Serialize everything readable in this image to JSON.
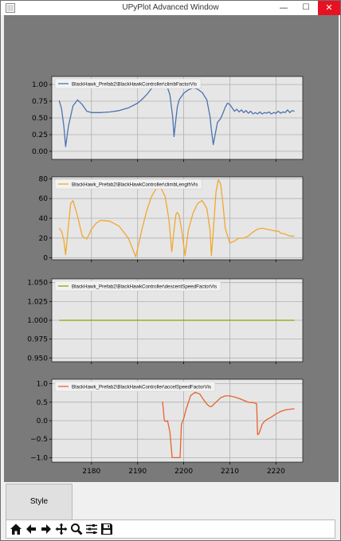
{
  "window": {
    "title": "UPyPlot Advanced Window",
    "minimize_glyph": "—",
    "maximize_glyph": "☐",
    "close_glyph": "✕"
  },
  "colors": {
    "plot_background": "#7a7a7a",
    "axes_face": "#e6e6e6",
    "grid": "#b0b0b0",
    "series_blue": "#4c72b0",
    "series_orange": "#f0a830",
    "series_olive": "#8fa000",
    "series_red": "#e8622f",
    "close_button": "#e81123"
  },
  "tabs": {
    "style_label": "Style"
  },
  "toolbar": {
    "icons": [
      "home-icon",
      "back-arrow-icon",
      "forward-arrow-icon",
      "pan-icon",
      "zoom-icon",
      "configure-subplots-icon",
      "save-icon"
    ]
  },
  "chart_data": [
    {
      "type": "line",
      "series": [
        {
          "name": "BlackHawk_Prefab2\\BlackHawkController\\climbFactorVis",
          "color": "#4c72b0",
          "x": [
            2173,
            2173.5,
            2174,
            2174.4,
            2175,
            2176,
            2177,
            2178,
            2179,
            2180,
            2182,
            2184,
            2186,
            2188,
            2190,
            2191,
            2192,
            2193,
            2194,
            2195,
            2196,
            2197,
            2197.6,
            2197.9,
            2198.2,
            2198.6,
            2199,
            2200,
            2201,
            2202,
            2203,
            2204,
            2205,
            2205.7,
            2206,
            2206.4,
            2206.8,
            2207.3,
            2208,
            2208.5,
            2209,
            2209.5,
            2210,
            2210.5,
            2211,
            2211.5,
            2212,
            2212.5,
            2213,
            2213.5,
            2214,
            2214.5,
            2215,
            2215.5,
            2216,
            2216.5,
            2217,
            2217.5,
            2218,
            2218.5,
            2219,
            2219.5,
            2220,
            2220.5,
            2221,
            2221.5,
            2222,
            2222.5,
            2223,
            2223.5,
            2224
          ],
          "y": [
            0.76,
            0.64,
            0.38,
            0.07,
            0.37,
            0.68,
            0.77,
            0.7,
            0.6,
            0.58,
            0.58,
            0.59,
            0.61,
            0.65,
            0.72,
            0.78,
            0.85,
            0.94,
            1.02,
            1.08,
            1.05,
            0.85,
            0.52,
            0.22,
            0.42,
            0.66,
            0.77,
            0.87,
            0.92,
            0.95,
            0.93,
            0.88,
            0.77,
            0.52,
            0.32,
            0.1,
            0.25,
            0.43,
            0.49,
            0.57,
            0.66,
            0.72,
            0.7,
            0.65,
            0.6,
            0.63,
            0.59,
            0.62,
            0.58,
            0.61,
            0.57,
            0.6,
            0.56,
            0.58,
            0.56,
            0.59,
            0.56,
            0.58,
            0.57,
            0.59,
            0.56,
            0.58,
            0.57,
            0.6,
            0.57,
            0.59,
            0.58,
            0.62,
            0.58,
            0.61,
            0.6
          ]
        }
      ],
      "ylim": [
        -0.12,
        1.12
      ],
      "xlim": [
        2171.4,
        2225.8
      ],
      "yticks": [
        0,
        0.25,
        0.5,
        0.75,
        1
      ],
      "ytick_labels": [
        "0.00",
        "0.25",
        "0.50",
        "0.75",
        "1.00"
      ],
      "xticks": [
        2180,
        2190,
        2200,
        2210,
        2220
      ],
      "xtick_labels": [],
      "grid": true,
      "legend": "top-left"
    },
    {
      "type": "line",
      "series": [
        {
          "name": "BlackHawk_Prefab2\\BlackHawkController\\climbLengthVis",
          "color": "#f0a830",
          "x": [
            2173,
            2173.5,
            2174,
            2174.4,
            2175,
            2175.5,
            2176,
            2177,
            2178,
            2179,
            2180,
            2181,
            2182,
            2184,
            2186,
            2188,
            2189.6,
            2191,
            2192,
            2193,
            2194,
            2195,
            2196,
            2196.8,
            2197.4,
            2198,
            2198.3,
            2198.6,
            2199,
            2199.5,
            2200.3,
            2201,
            2202,
            2203,
            2204,
            2205,
            2205.7,
            2206,
            2206.3,
            2207,
            2207.5,
            2208,
            2208.5,
            2209,
            2210,
            2211,
            2212,
            2213,
            2214,
            2215,
            2216,
            2217,
            2218,
            2219,
            2220,
            2220.6,
            2221,
            2222,
            2223,
            2224
          ],
          "y": [
            30,
            27,
            18,
            3,
            32,
            55,
            58,
            42,
            22,
            19,
            29,
            35,
            38,
            37,
            32,
            20,
            1,
            30,
            48,
            62,
            70,
            71,
            62,
            38,
            6,
            32,
            44,
            46,
            43,
            30,
            2,
            28,
            45,
            55,
            58,
            50,
            28,
            2,
            20,
            67,
            79,
            75,
            55,
            30,
            15,
            17,
            20,
            20,
            22,
            26,
            29,
            30,
            29,
            28,
            27,
            27,
            25,
            24,
            22,
            22
          ]
        }
      ],
      "ylim": [
        -2,
        82
      ],
      "xlim": [
        2171.4,
        2225.8
      ],
      "yticks": [
        0,
        20,
        40,
        60,
        80
      ],
      "ytick_labels": [
        "0",
        "20",
        "40",
        "60",
        "80"
      ],
      "xticks": [
        2180,
        2190,
        2200,
        2210,
        2220
      ],
      "xtick_labels": [],
      "grid": true,
      "legend": "top-left"
    },
    {
      "type": "line",
      "series": [
        {
          "name": "BlackHawk_Prefab2\\BlackHawkController\\descentSpeedFactorVis",
          "color": "#8fa000",
          "x": [
            2173,
            2224
          ],
          "y": [
            1.0,
            1.0
          ]
        }
      ],
      "ylim": [
        0.945,
        1.055
      ],
      "xlim": [
        2171.4,
        2225.8
      ],
      "yticks": [
        0.95,
        0.975,
        1.0,
        1.025,
        1.05
      ],
      "ytick_labels": [
        "0.950",
        "0.975",
        "1.000",
        "1.025",
        "1.050"
      ],
      "xticks": [
        2180,
        2190,
        2200,
        2210,
        2220
      ],
      "xtick_labels": [],
      "grid": true,
      "legend": "top-left"
    },
    {
      "type": "line",
      "series": [
        {
          "name": "BlackHawk_Prefab2\\BlackHawkController\\accelSpeedFactorVis",
          "color": "#e8622f",
          "x": [
            2195.4,
            2195.8,
            2196.1,
            2196.5,
            2197,
            2197.5,
            2198.5,
            2199.2,
            2199.5,
            2200,
            2200.5,
            2201.5,
            2202.5,
            2203.5,
            2204,
            2205,
            2205.5,
            2206,
            2207,
            2208,
            2209,
            2210,
            2211,
            2212,
            2213,
            2214,
            2215,
            2215.8,
            2216,
            2216.3,
            2216.6,
            2217,
            2217.5,
            2218,
            2219,
            2220,
            2221,
            2222,
            2223,
            2224
          ],
          "y": [
            0.52,
            0.0,
            -0.02,
            0.0,
            -0.3,
            -1.0,
            -1.0,
            -1.0,
            -0.1,
            0.06,
            0.3,
            0.68,
            0.77,
            0.72,
            0.62,
            0.45,
            0.39,
            0.38,
            0.5,
            0.62,
            0.67,
            0.67,
            0.64,
            0.6,
            0.55,
            0.5,
            0.49,
            0.46,
            -0.38,
            -0.35,
            -0.25,
            -0.1,
            -0.02,
            0.03,
            0.1,
            0.18,
            0.25,
            0.29,
            0.31,
            0.32
          ]
        }
      ],
      "ylim": [
        -1.12,
        1.12
      ],
      "xlim": [
        2171.4,
        2225.8
      ],
      "yticks": [
        -1,
        -0.5,
        0,
        0.5,
        1
      ],
      "ytick_labels": [
        "−1.0",
        "−0.5",
        "0.0",
        "0.5",
        "1.0"
      ],
      "xticks": [
        2180,
        2190,
        2200,
        2210,
        2220
      ],
      "xtick_labels": [
        "2180",
        "2190",
        "2200",
        "2210",
        "2220"
      ],
      "grid": true,
      "legend": "top-left"
    }
  ]
}
